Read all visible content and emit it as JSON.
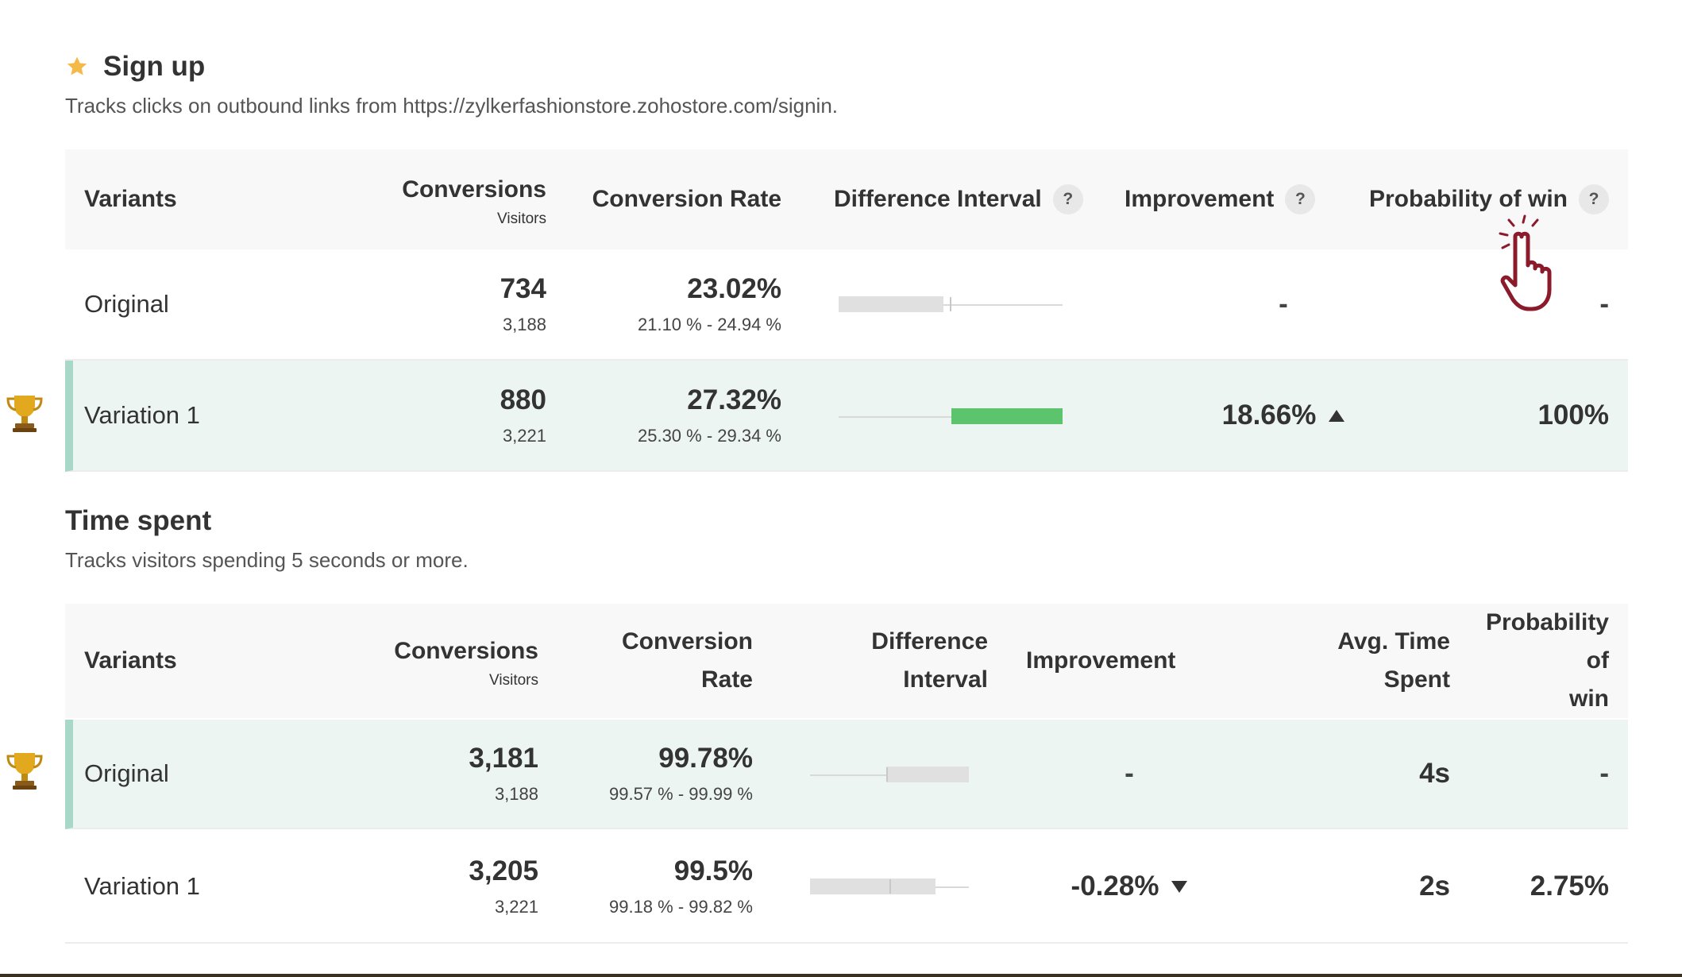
{
  "goals": [
    {
      "title": "Sign up",
      "description": "Tracks clicks on outbound links from https://zylkerfashionstore.zohostore.com/signin.",
      "headers": {
        "variants": "Variants",
        "conversions": "Conversions",
        "visitors": "Visitors",
        "conversion_rate": "Conversion Rate",
        "difference_interval": "Difference Interval",
        "improvement": "Improvement",
        "probability": "Probability of win",
        "help": "?"
      },
      "rows": [
        {
          "variant": "Original",
          "conversions": "734",
          "visitors": "3,188",
          "rate": "23.02%",
          "range": "21.10 % - 24.94 %",
          "improvement": "-",
          "probability": "-",
          "winner": false
        },
        {
          "variant": "Variation 1",
          "conversions": "880",
          "visitors": "3,221",
          "rate": "27.32%",
          "range": "25.30 % - 29.34 %",
          "improvement": "18.66%",
          "improvement_direction": "up",
          "probability": "100%",
          "winner": true
        }
      ]
    },
    {
      "title": "Time spent",
      "description": "Tracks visitors spending 5 seconds or more.",
      "headers": {
        "variants": "Variants",
        "conversions": "Conversions",
        "visitors": "Visitors",
        "conversion_rate_1": "Conversion",
        "conversion_rate_2": "Rate",
        "difference_interval_1": "Difference",
        "difference_interval_2": "Interval",
        "improvement": "Improvement",
        "avg_time_1": "Avg. Time",
        "avg_time_2": "Spent",
        "probability_1": "Probability of",
        "probability_2": "win"
      },
      "rows": [
        {
          "variant": "Original",
          "conversions": "3,181",
          "visitors": "3,188",
          "rate": "99.78%",
          "range": "99.57 % - 99.99 %",
          "improvement": "-",
          "avg_time": "4s",
          "probability": "-",
          "winner": true
        },
        {
          "variant": "Variation 1",
          "conversions": "3,205",
          "visitors": "3,221",
          "rate": "99.5%",
          "range": "99.18 % - 99.82 %",
          "improvement": "-0.28%",
          "improvement_direction": "down",
          "avg_time": "2s",
          "probability": "2.75%",
          "winner": false
        }
      ]
    }
  ],
  "colors": {
    "winner_row_bg": "#ecf5f2",
    "winner_accent": "#a7d8c8",
    "positive_bar": "#5cc46d",
    "neutral_bar": "#e0e0e0",
    "star": "#f5b94a",
    "trophy": "#d9a21b",
    "cursor": "#8b1a2b"
  },
  "icons": [
    "star-icon",
    "trophy-icon",
    "help-icon",
    "triangle-up-icon",
    "triangle-down-icon",
    "hand-pointer-cursor-icon"
  ]
}
